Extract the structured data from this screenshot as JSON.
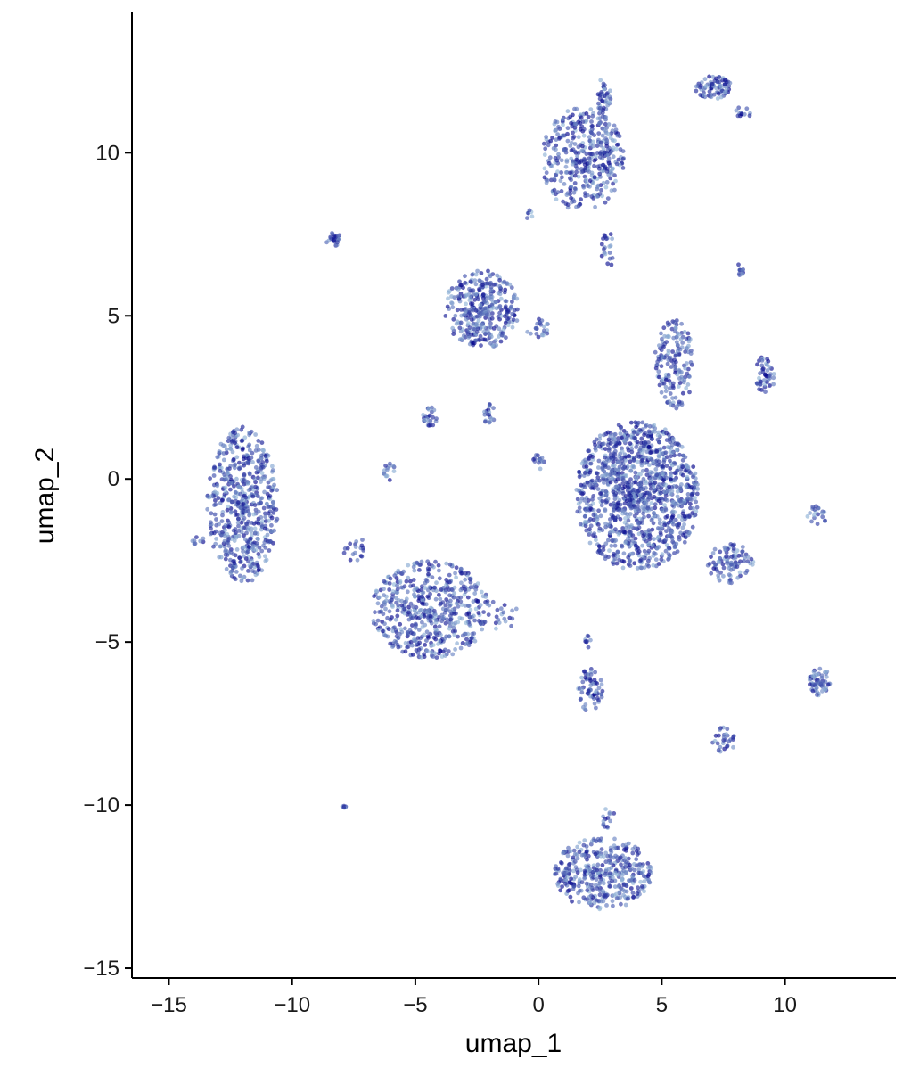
{
  "chart_data": {
    "type": "scatter",
    "title": "",
    "xlabel": "umap_1",
    "ylabel": "umap_2",
    "xlim": [
      -16.5,
      14.5
    ],
    "ylim": [
      -15.3,
      14.3
    ],
    "x_ticks": [
      -15,
      -10,
      -5,
      0,
      5,
      10
    ],
    "y_ticks": [
      -15,
      -10,
      -5,
      0,
      5,
      10
    ],
    "x_tick_labels": [
      "−15",
      "−10",
      "−5",
      "0",
      "5",
      "10"
    ],
    "y_tick_labels": [
      "−15",
      "−10",
      "−5",
      "0",
      "5",
      "10"
    ],
    "grid": false,
    "legend": "none",
    "color_scale": [
      "#add8e6",
      "#00008b"
    ],
    "clusters": [
      {
        "cx": -12.0,
        "cy": -0.8,
        "rx": 1.45,
        "ry": 2.4,
        "n": 560
      },
      {
        "cx": -13.8,
        "cy": -1.9,
        "rx": 0.3,
        "ry": 0.12,
        "n": 8
      },
      {
        "cx": -4.4,
        "cy": -4.0,
        "rx": 2.4,
        "ry": 1.5,
        "n": 520
      },
      {
        "cx": -7.5,
        "cy": -2.2,
        "rx": 0.5,
        "ry": 0.5,
        "n": 18
      },
      {
        "cx": -1.6,
        "cy": -4.2,
        "rx": 0.9,
        "ry": 0.5,
        "n": 22
      },
      {
        "cx": -2.3,
        "cy": 5.2,
        "rx": 1.5,
        "ry": 1.2,
        "n": 330
      },
      {
        "cx": 0.0,
        "cy": 4.6,
        "rx": 0.5,
        "ry": 0.3,
        "n": 22
      },
      {
        "cx": 1.8,
        "cy": 9.8,
        "rx": 1.7,
        "ry": 1.6,
        "n": 380
      },
      {
        "cx": 2.7,
        "cy": 11.7,
        "rx": 0.3,
        "ry": 0.7,
        "n": 40
      },
      {
        "cx": 2.8,
        "cy": 7.0,
        "rx": 0.25,
        "ry": 0.6,
        "n": 20
      },
      {
        "cx": 7.1,
        "cy": 12.0,
        "rx": 0.75,
        "ry": 0.35,
        "n": 80
      },
      {
        "cx": 8.2,
        "cy": 11.2,
        "rx": 0.4,
        "ry": 0.2,
        "n": 12
      },
      {
        "cx": 4.0,
        "cy": -0.5,
        "rx": 2.5,
        "ry": 2.3,
        "n": 1150
      },
      {
        "cx": 5.5,
        "cy": 3.5,
        "rx": 0.8,
        "ry": 1.4,
        "n": 160
      },
      {
        "cx": 7.8,
        "cy": -2.6,
        "rx": 1.0,
        "ry": 0.6,
        "n": 90
      },
      {
        "cx": 9.2,
        "cy": 3.2,
        "rx": 0.4,
        "ry": 0.6,
        "n": 45
      },
      {
        "cx": 8.2,
        "cy": 6.4,
        "rx": 0.12,
        "ry": 0.25,
        "n": 10
      },
      {
        "cx": -8.3,
        "cy": 7.3,
        "rx": 0.3,
        "ry": 0.3,
        "n": 22
      },
      {
        "cx": -4.4,
        "cy": 1.9,
        "rx": 0.3,
        "ry": 0.3,
        "n": 24
      },
      {
        "cx": -2.0,
        "cy": 2.0,
        "rx": 0.25,
        "ry": 0.35,
        "n": 18
      },
      {
        "cx": -6.1,
        "cy": 0.2,
        "rx": 0.3,
        "ry": 0.3,
        "n": 14
      },
      {
        "cx": 0.0,
        "cy": 0.5,
        "rx": 0.3,
        "ry": 0.25,
        "n": 14
      },
      {
        "cx": -0.4,
        "cy": 8.1,
        "rx": 0.15,
        "ry": 0.15,
        "n": 6
      },
      {
        "cx": 2.1,
        "cy": -6.5,
        "rx": 0.5,
        "ry": 0.7,
        "n": 65
      },
      {
        "cx": 2.0,
        "cy": -5.0,
        "rx": 0.15,
        "ry": 0.25,
        "n": 8
      },
      {
        "cx": 7.5,
        "cy": -8.0,
        "rx": 0.5,
        "ry": 0.4,
        "n": 28
      },
      {
        "cx": 11.4,
        "cy": -6.2,
        "rx": 0.45,
        "ry": 0.45,
        "n": 60
      },
      {
        "cx": 11.3,
        "cy": -1.1,
        "rx": 0.4,
        "ry": 0.35,
        "n": 20
      },
      {
        "cx": -7.9,
        "cy": -10.0,
        "rx": 0.1,
        "ry": 0.1,
        "n": 6
      },
      {
        "cx": 2.6,
        "cy": -12.1,
        "rx": 2.0,
        "ry": 1.1,
        "n": 380
      },
      {
        "cx": 2.8,
        "cy": -10.4,
        "rx": 0.3,
        "ry": 0.3,
        "n": 14
      }
    ]
  }
}
